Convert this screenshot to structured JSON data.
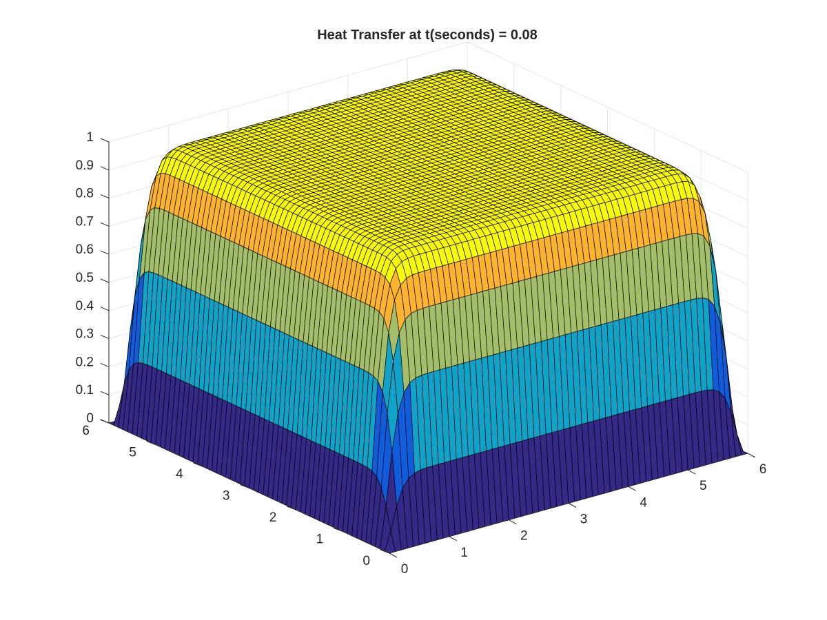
{
  "chart_data": {
    "type": "surface",
    "title": "Heat Transfer at t(seconds) = 0.08",
    "xlabel": "",
    "ylabel": "",
    "zlabel": "",
    "x_range": [
      0,
      6
    ],
    "y_range": [
      0,
      6
    ],
    "z_range": [
      0,
      1
    ],
    "x_ticks": [
      "0",
      "1",
      "2",
      "3",
      "4",
      "5",
      "6"
    ],
    "y_ticks": [
      "0",
      "1",
      "2",
      "3",
      "4",
      "5",
      "6"
    ],
    "z_ticks": [
      "0",
      "0.1",
      "0.2",
      "0.3",
      "0.4",
      "0.5",
      "0.6",
      "0.7",
      "0.8",
      "0.9",
      "1"
    ],
    "grid": true,
    "colormap": "parula",
    "edge_color": "#000000",
    "mesh_count": 60,
    "plateau_value": 1.0,
    "boundary_value": 0.0,
    "colors": {
      "band_0_0.2": "#352a87",
      "band_0.2_0.4": "#0f5cdd",
      "band_0.4_0.6": "#11a2c9",
      "band_0.6_0.8": "#a5be6a",
      "band_0.8_0.9": "#fbb330",
      "band_0.9_1": "#f9fb0e"
    }
  }
}
